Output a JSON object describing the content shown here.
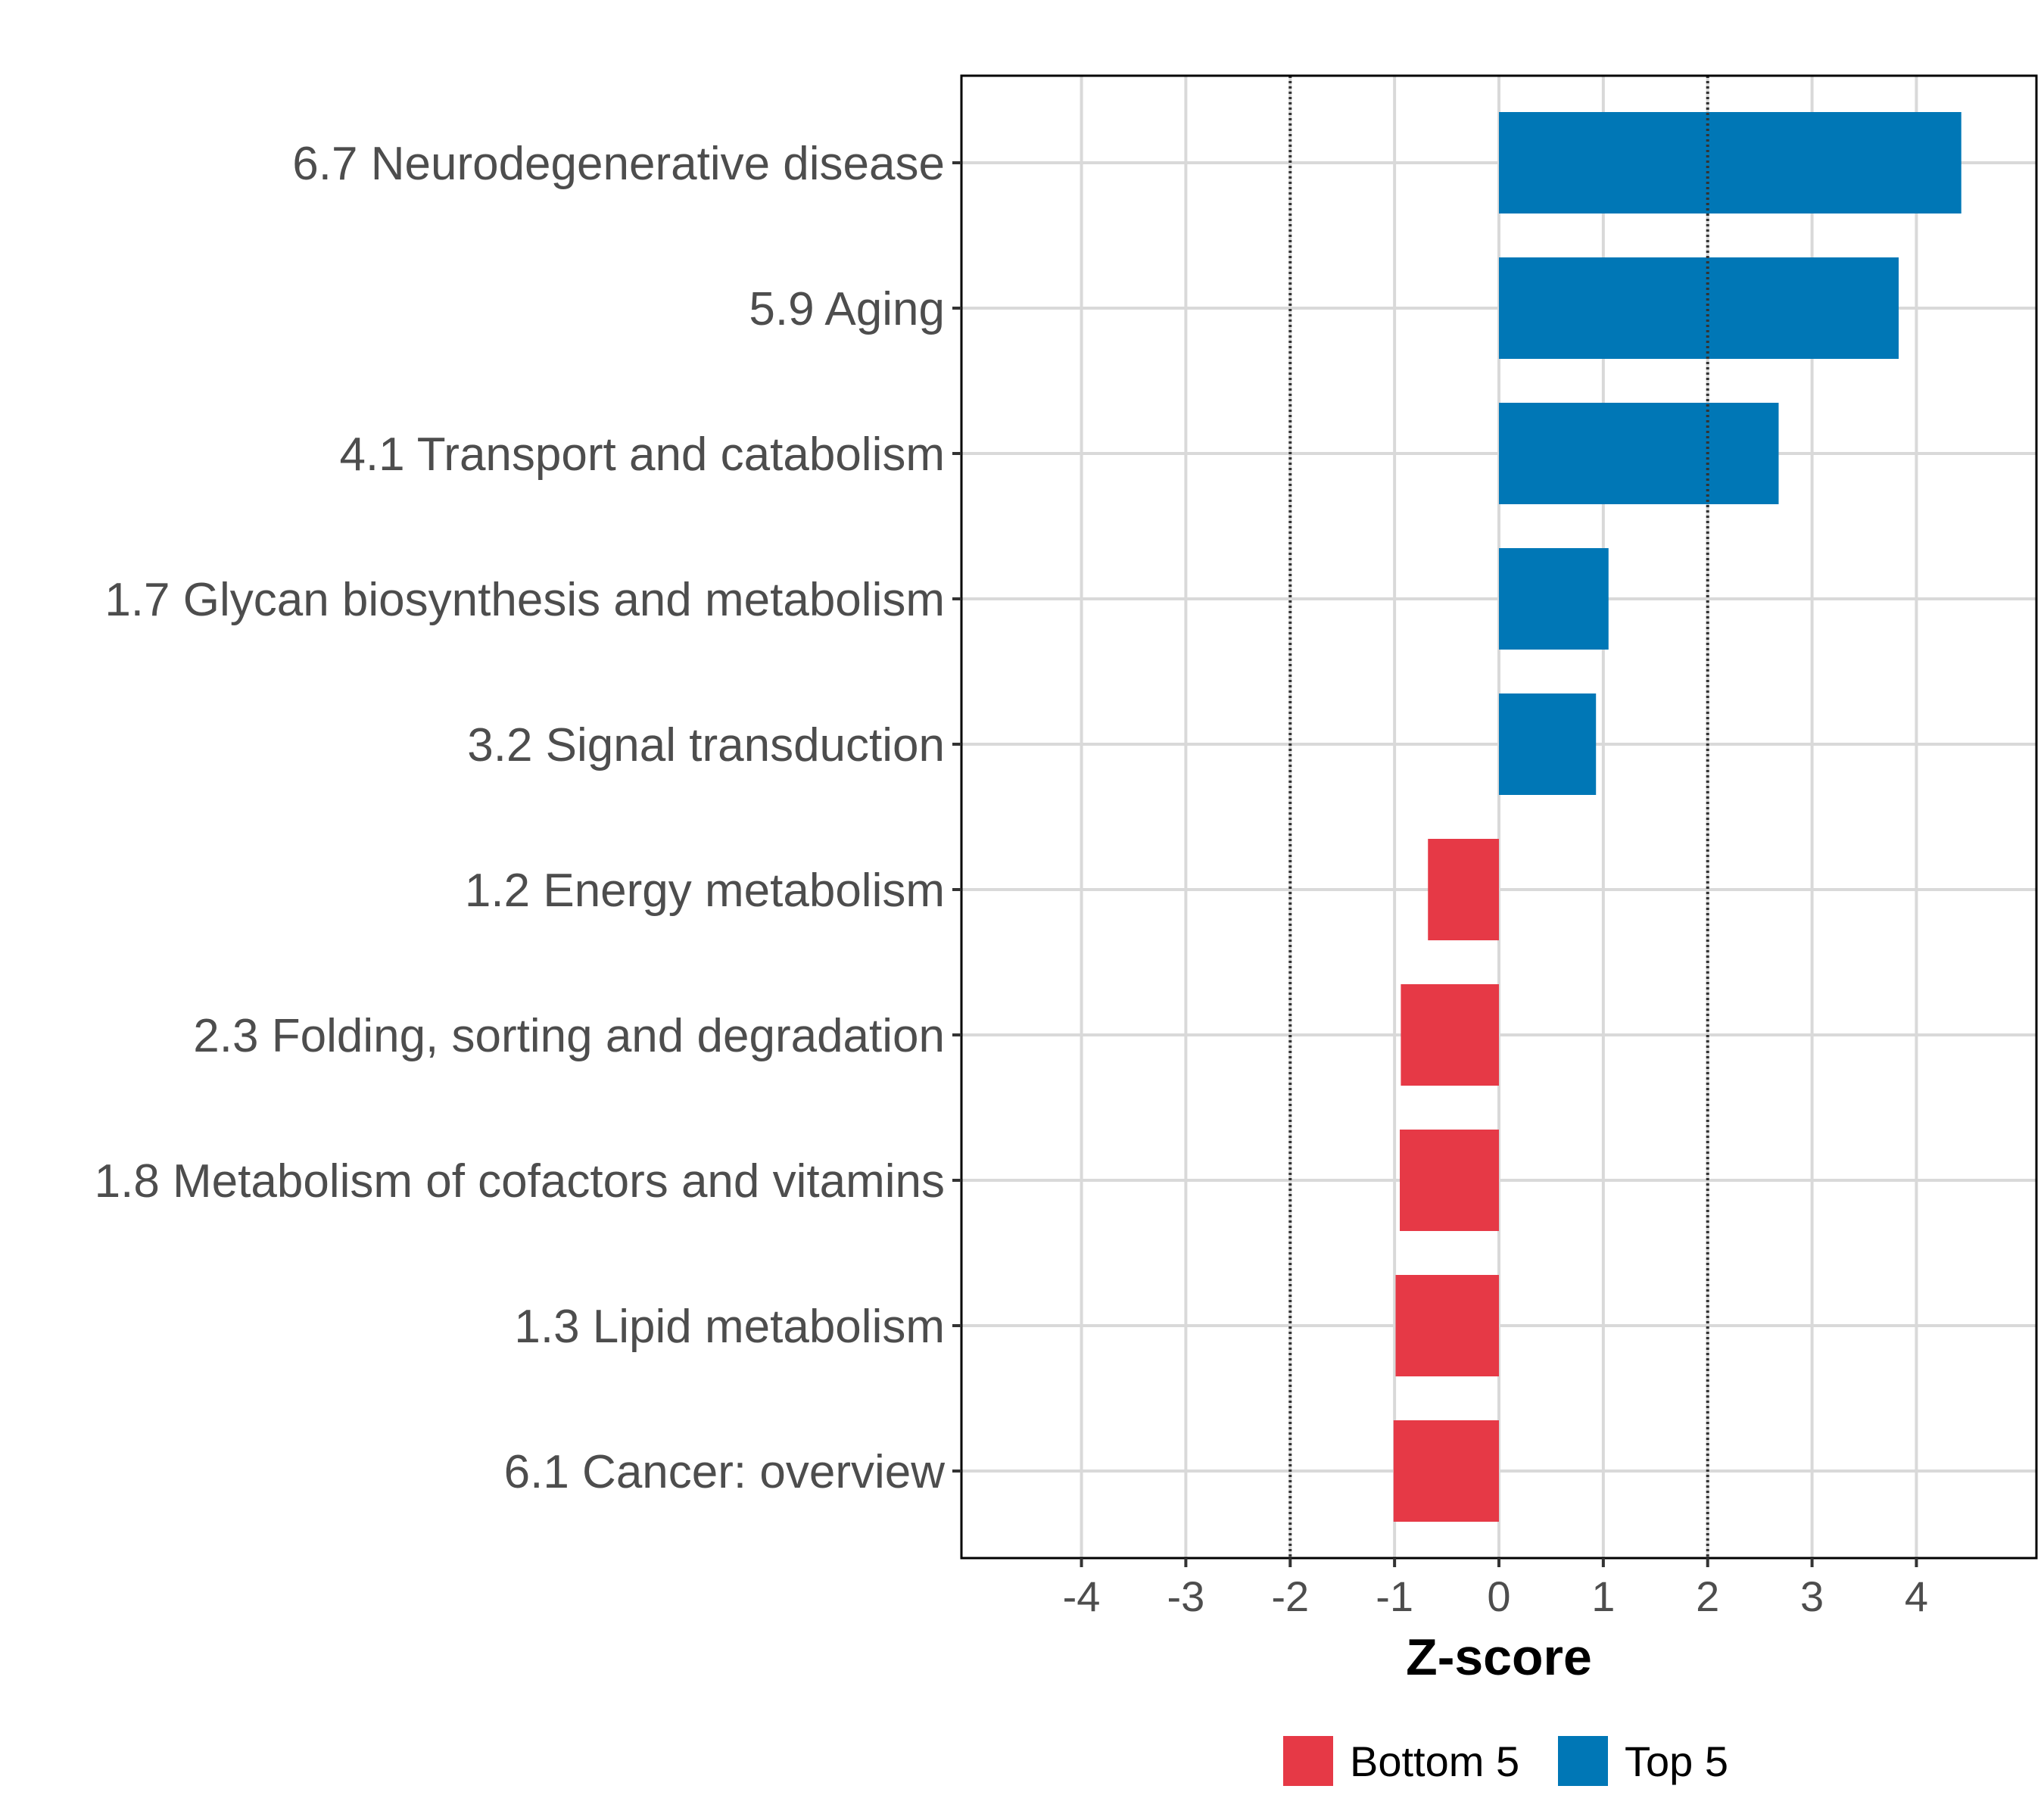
{
  "chart_data": {
    "type": "bar",
    "orientation": "horizontal",
    "xlabel": "Z-score",
    "xlim": [
      -5.15,
      5.15
    ],
    "xticks": [
      -4,
      -3,
      -2,
      -1,
      0,
      1,
      2,
      3,
      4
    ],
    "xtick_labels": [
      "-4",
      "-3",
      "-2",
      "-1",
      "0",
      "1",
      "2",
      "3",
      "4"
    ],
    "reference_lines": [
      -2,
      2
    ],
    "grid": true,
    "categories": [
      "6.7 Neurodegenerative disease",
      "5.9 Aging",
      "4.1 Transport and catabolism",
      "1.7 Glycan biosynthesis and metabolism",
      "3.2 Signal transduction",
      "1.2 Energy metabolism",
      "2.3 Folding, sorting and degradation",
      "1.8 Metabolism of cofactors and vitamins",
      "1.3 Lipid metabolism",
      "6.1 Cancer: overview"
    ],
    "values": [
      4.43,
      3.83,
      2.68,
      1.05,
      0.93,
      -0.68,
      -0.94,
      -0.95,
      -0.99,
      -1.01
    ],
    "groups": [
      "Top 5",
      "Top 5",
      "Top 5",
      "Top 5",
      "Top 5",
      "Bottom 5",
      "Bottom 5",
      "Bottom 5",
      "Bottom 5",
      "Bottom 5"
    ],
    "legend": {
      "position": "bottom",
      "entries": [
        {
          "label": "Bottom 5",
          "color": "#e63946"
        },
        {
          "label": "Top 5",
          "color": "#0077b6"
        }
      ]
    },
    "colors": {
      "Top 5": "#0077b6",
      "Bottom 5": "#e63946"
    }
  }
}
